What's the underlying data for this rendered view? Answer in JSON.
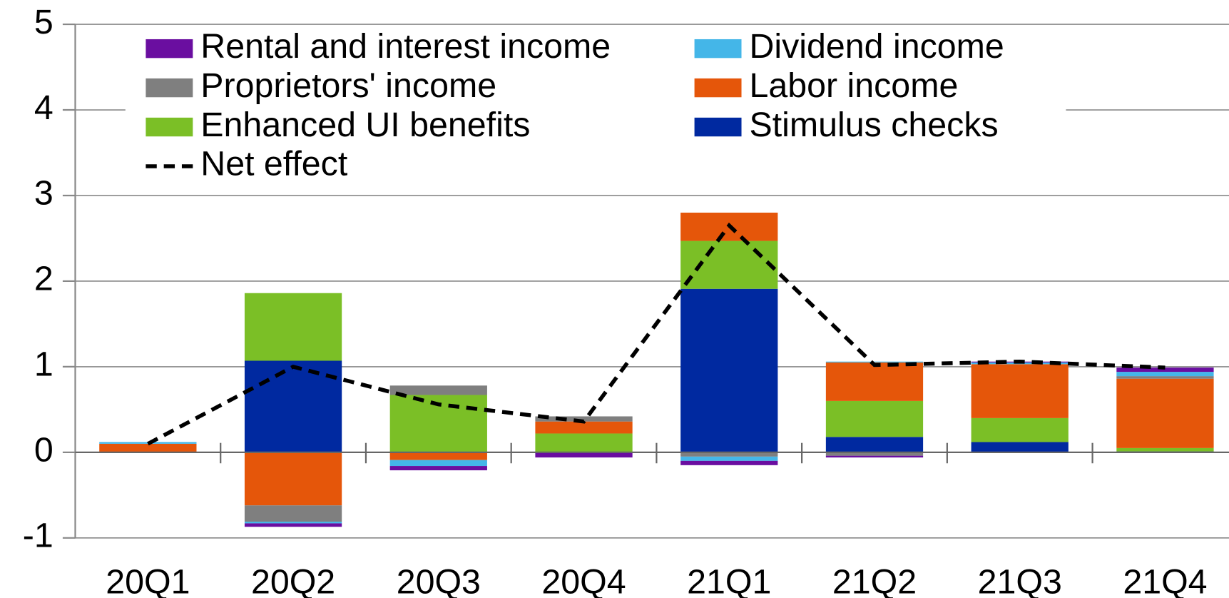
{
  "chart_data": {
    "type": "stacked_bar",
    "categories": [
      "20Q1",
      "20Q2",
      "20Q3",
      "20Q4",
      "21Q1",
      "21Q2",
      "21Q3",
      "21Q4"
    ],
    "series": [
      {
        "name": "Rental and interest income",
        "color": "#6a0ea0",
        "values": [
          0,
          -0.04,
          -0.05,
          -0.06,
          -0.05,
          -0.02,
          0.01,
          0.05
        ]
      },
      {
        "name": "Dividend income",
        "color": "#44b6e8",
        "values": [
          0.02,
          -0.02,
          -0.07,
          0,
          -0.05,
          0.01,
          0.02,
          0.05
        ]
      },
      {
        "name": "Proprietors' income",
        "color": "#7f7f7f",
        "values": [
          0,
          -0.19,
          0.11,
          0.06,
          -0.05,
          -0.04,
          0,
          0.03
        ]
      },
      {
        "name": "Labor income",
        "color": "#e5560a",
        "values": [
          0.1,
          -0.62,
          -0.09,
          0.14,
          0.33,
          0.45,
          0.63,
          0.81
        ]
      },
      {
        "name": "Enhanced UI benefits",
        "color": "#7bbf26",
        "values": [
          0,
          0.79,
          0.67,
          0.22,
          0.56,
          0.42,
          0.28,
          0.04
        ]
      },
      {
        "name": "Stimulus checks",
        "color": "#0029a0",
        "values": [
          0,
          1.07,
          0,
          0,
          1.91,
          0.18,
          0.12,
          0.01
        ]
      }
    ],
    "net": {
      "name": "Net effect",
      "color": "#000000",
      "values": [
        0.1,
        1.0,
        0.56,
        0.36,
        2.65,
        1.02,
        1.06,
        0.99
      ]
    },
    "ylim": [
      -1,
      5
    ],
    "yticks": [
      -1,
      0,
      1,
      2,
      3,
      4,
      5
    ],
    "grid": true,
    "legend": "upper left"
  }
}
